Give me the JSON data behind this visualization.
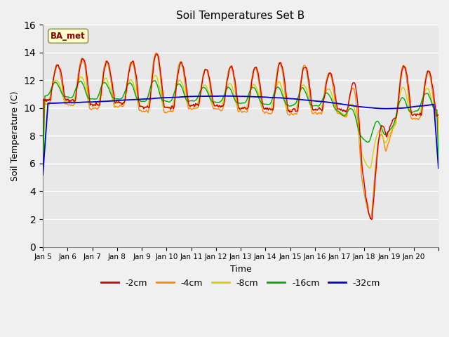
{
  "title": "Soil Temperatures Set B",
  "xlabel": "Time",
  "ylabel": "Soil Temperature (C)",
  "ylim": [
    0,
    16
  ],
  "yticks": [
    0,
    2,
    4,
    6,
    8,
    10,
    12,
    14,
    16
  ],
  "annotation": "BA_met",
  "fig_facecolor": "#f0f0f0",
  "plot_facecolor": "#e8e8e8",
  "legend_labels": [
    "-2cm",
    "-4cm",
    "-8cm",
    "-16cm",
    "-32cm"
  ],
  "line_colors": [
    "#cc0000",
    "#ff8800",
    "#ddcc00",
    "#00aa00",
    "#0000cc"
  ],
  "x_labels": [
    "Jan 5",
    "Jan 6",
    "Jan 7",
    "Jan 8",
    "Jan 9",
    "Jan 10",
    "Jan 11",
    "Jan 12",
    "Jan 13",
    "Jan 14",
    "Jan 15",
    "Jan 16",
    "Jan 17",
    "Jan 18",
    "Jan 19",
    "Jan 20"
  ],
  "n_days": 16,
  "n_points_per_day": 48
}
